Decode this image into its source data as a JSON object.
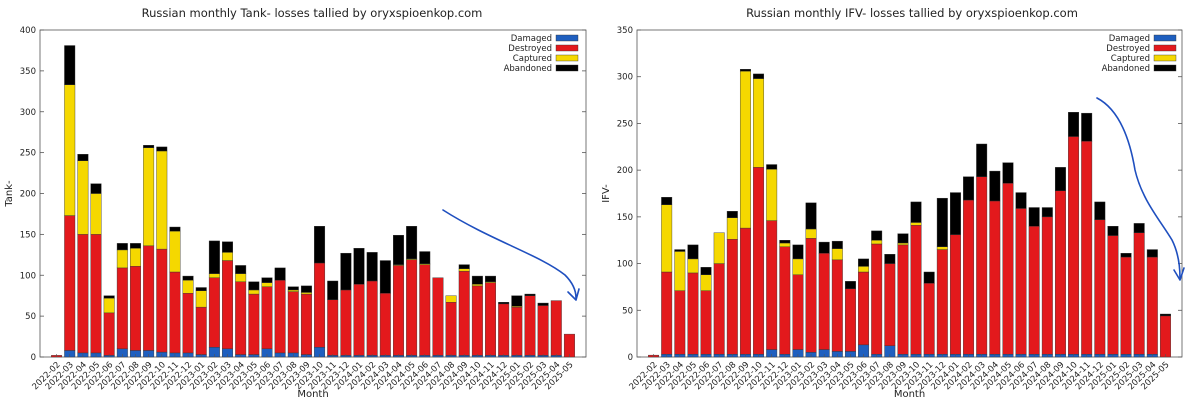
{
  "chart_data": [
    {
      "type": "bar",
      "stacked": true,
      "title": "Russian monthly Tank- losses tallied by oryxspioenkop.com",
      "xlabel": "Month",
      "ylabel": "Tank-",
      "ylim": [
        0,
        400
      ],
      "yticks": [
        0,
        50,
        100,
        150,
        200,
        250,
        300,
        350,
        400
      ],
      "legend": "top-right",
      "categories": [
        "2022-02",
        "2022-03",
        "2022-04",
        "2022-05",
        "2022-06",
        "2022-07",
        "2022-08",
        "2022-09",
        "2022-10",
        "2022-11",
        "2022-12",
        "2023-01",
        "2023-02",
        "2023-03",
        "2023-04",
        "2023-05",
        "2023-06",
        "2023-07",
        "2023-08",
        "2023-09",
        "2023-10",
        "2023-11",
        "2023-12",
        "2024-01",
        "2024-02",
        "2024-03",
        "2024-04",
        "2024-05",
        "2024-06",
        "2024-07",
        "2024-08",
        "2024-09",
        "2024-10",
        "2024-11",
        "2024-12",
        "2025-01",
        "2025-02",
        "2025-03",
        "2025-04",
        "2025-05"
      ],
      "tick_labels": [
        "2022-02",
        "2022-03",
        "2022-04",
        "2022-05",
        "2022-06",
        "2022-07",
        "2022-08",
        "2022-09",
        "2022-10",
        "2022-11",
        "2022-12",
        "2023-01",
        "2023-02",
        "2023-03",
        "2023-04",
        "2023-05",
        "2023-06",
        "2023-07",
        "2023-08",
        "2023-09",
        "2023-10",
        "2023-11",
        "2023-12",
        "2024-01",
        "2024-02",
        "2024-03",
        "2024-04",
        "2024-05",
        "2024-06",
        "2024-07",
        "2024-08",
        "2024-09",
        "2024-10",
        "2024-11",
        "2024-12",
        "2025-01",
        "2025-02",
        "2025-03",
        "2025-04",
        "2025-05"
      ],
      "series": [
        {
          "name": "Damaged",
          "color": "#1f5fbf",
          "values": [
            0,
            8,
            5,
            5,
            2,
            10,
            8,
            8,
            6,
            5,
            5,
            3,
            12,
            10,
            3,
            3,
            10,
            5,
            5,
            3,
            12,
            2,
            2,
            2,
            2,
            2,
            2,
            2,
            2,
            2,
            2,
            2,
            2,
            2,
            2,
            2,
            2,
            2,
            2,
            0
          ]
        },
        {
          "name": "Destroyed",
          "color": "#e3191c",
          "values": [
            2,
            165,
            145,
            145,
            52,
            99,
            103,
            128,
            126,
            99,
            73,
            58,
            85,
            108,
            89,
            74,
            76,
            89,
            75,
            74,
            103,
            68,
            80,
            87,
            91,
            76,
            110,
            117,
            111,
            95,
            65,
            103,
            85,
            89,
            63,
            59,
            73,
            61,
            67,
            28
          ]
        },
        {
          "name": "Captured",
          "color": "#f5d800",
          "values": [
            0,
            160,
            90,
            50,
            18,
            22,
            22,
            120,
            120,
            50,
            16,
            20,
            5,
            10,
            10,
            5,
            5,
            0,
            2,
            2,
            0,
            0,
            0,
            0,
            0,
            0,
            1,
            1,
            1,
            0,
            8,
            3,
            2,
            1,
            0,
            1,
            0,
            0,
            0,
            0
          ]
        },
        {
          "name": "Abandoned",
          "color": "#000000",
          "values": [
            0,
            48,
            8,
            12,
            3,
            8,
            6,
            3,
            5,
            5,
            5,
            4,
            40,
            13,
            10,
            10,
            6,
            15,
            4,
            8,
            45,
            23,
            45,
            44,
            35,
            40,
            36,
            40,
            15,
            0,
            0,
            5,
            10,
            7,
            2,
            13,
            2,
            3,
            0,
            0
          ]
        }
      ],
      "annotation": "hand-drawn blue arrow pointing down-right at the 2025 bars"
    },
    {
      "type": "bar",
      "stacked": true,
      "title": "Russian monthly IFV- losses tallied by oryxspioenkop.com",
      "xlabel": "Month",
      "ylabel": "IFV-",
      "ylim": [
        0,
        350
      ],
      "yticks": [
        0,
        50,
        100,
        150,
        200,
        250,
        300,
        350
      ],
      "legend": "top-right",
      "categories": [
        "2022-02",
        "2022-03",
        "2022-04",
        "2022-05",
        "2022-06",
        "2022-07",
        "2022-08",
        "2022-09",
        "2022-10",
        "2022-11",
        "2022-12",
        "2023-01",
        "2023-02",
        "2023-03",
        "2023-04",
        "2023-05",
        "2023-06",
        "2023-07",
        "2023-08",
        "2023-09",
        "2023-10",
        "2023-11",
        "2023-12",
        "2024-01",
        "2024-02",
        "2024-03",
        "2024-04",
        "2024-05",
        "2024-06",
        "2024-07",
        "2024-08",
        "2024-09",
        "2024-10",
        "2024-11",
        "2024-12",
        "2025-01",
        "2025-02",
        "2025-03",
        "2025-04",
        "2025-05"
      ],
      "tick_labels": [
        "2022-02",
        "2022-03",
        "2022-04",
        "2022-05",
        "2022-06",
        "2022-07",
        "2022-08",
        "2022-09",
        "2022-10",
        "2022-11",
        "2022-12",
        "2023-01",
        "2023-02",
        "2023-03",
        "2023-04",
        "2023-05",
        "2023-06",
        "2023-07",
        "2023-08",
        "2023-09",
        "2023-10",
        "2023-11",
        "2023-12",
        "2024-01",
        "2024-02",
        "2024-03",
        "2024-04",
        "2024-05",
        "2024-06",
        "2024-07",
        "2024-08",
        "2024-09",
        "2024-10",
        "2024-11",
        "2024-12",
        "2025-01",
        "2025-02",
        "2025-03",
        "2025-04",
        "2025-05"
      ],
      "series": [
        {
          "name": "Damaged",
          "color": "#1f5fbf",
          "values": [
            0,
            3,
            3,
            3,
            3,
            3,
            3,
            3,
            3,
            8,
            3,
            8,
            5,
            8,
            6,
            6,
            13,
            3,
            12,
            3,
            3,
            3,
            3,
            3,
            3,
            3,
            3,
            3,
            3,
            3,
            3,
            3,
            3,
            3,
            3,
            3,
            3,
            3,
            3,
            0
          ]
        },
        {
          "name": "Destroyed",
          "color": "#e3191c",
          "values": [
            2,
            88,
            68,
            87,
            68,
            97,
            123,
            135,
            200,
            138,
            115,
            80,
            122,
            103,
            98,
            67,
            78,
            118,
            88,
            117,
            138,
            76,
            112,
            128,
            165,
            190,
            164,
            183,
            156,
            137,
            147,
            175,
            233,
            228,
            144,
            127,
            104,
            130,
            104,
            44
          ]
        },
        {
          "name": "Captured",
          "color": "#f5d800",
          "values": [
            0,
            72,
            42,
            15,
            17,
            33,
            23,
            168,
            95,
            55,
            4,
            17,
            10,
            0,
            12,
            0,
            6,
            4,
            0,
            2,
            3,
            0,
            3,
            0,
            0,
            0,
            0,
            0,
            0,
            0,
            0,
            0,
            0,
            0,
            0,
            0,
            0,
            0,
            0,
            0
          ]
        },
        {
          "name": "Abandoned",
          "color": "#000000",
          "values": [
            0,
            8,
            2,
            15,
            8,
            0,
            7,
            2,
            5,
            5,
            3,
            15,
            28,
            12,
            8,
            8,
            8,
            10,
            10,
            10,
            22,
            12,
            52,
            45,
            25,
            35,
            32,
            22,
            17,
            20,
            10,
            25,
            26,
            30,
            19,
            10,
            4,
            10,
            8,
            2
          ]
        }
      ],
      "annotation": "hand-drawn blue arrow pointing down-right at the 2025 bars"
    }
  ]
}
